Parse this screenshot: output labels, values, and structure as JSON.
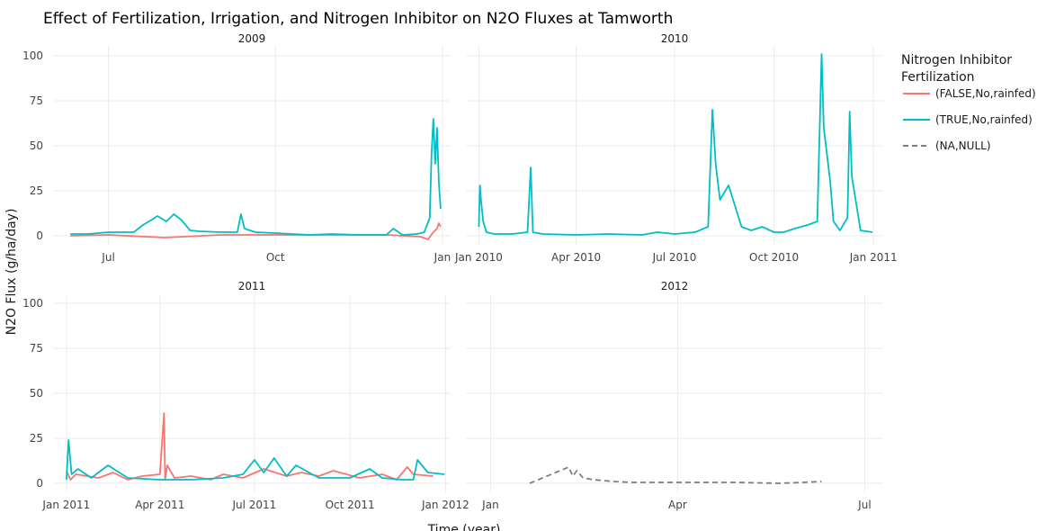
{
  "chart_data": {
    "type": "line",
    "title": "Effect of Fertilization, Irrigation, and Nitrogen Inhibitor on N2O Fluxes at Tamworth",
    "xlabel": "Time (year)",
    "ylabel": "N2O Flux (g/ha/day)",
    "ylim": [
      -5,
      105
    ],
    "yticks": [
      0,
      25,
      50,
      75,
      100
    ],
    "grid": true,
    "legend": {
      "title_lines": [
        "Nitrogen Inhibitor",
        "Fertilization"
      ],
      "placement": "right",
      "entries": [
        {
          "label": "(FALSE,No,rainfed)",
          "color": "#F8766D",
          "dash": "solid"
        },
        {
          "label": "(TRUE,No,rainfed)",
          "color": "#00BFC4",
          "dash": "solid"
        },
        {
          "label": "(NA,NULL)",
          "color": "#7f7f7f",
          "dash": "dash"
        }
      ]
    },
    "panels": [
      {
        "strip": "2009",
        "xrange": [
          "2009-06-01",
          "2010-01-05"
        ],
        "xticks": [
          {
            "value": "2009-07-01",
            "label": "Jul"
          },
          {
            "value": "2009-10-01",
            "label": "Oct"
          },
          {
            "value": "2010-01-01",
            "label": "Jan"
          }
        ],
        "series": [
          {
            "name": "(FALSE,No,rainfed)",
            "color": "#F8766D",
            "dash": "solid",
            "x": [
              "2009-06-10",
              "2009-07-01",
              "2009-08-01",
              "2009-09-01",
              "2009-09-20",
              "2009-10-15",
              "2009-11-10",
              "2009-12-01",
              "2009-12-20",
              "2009-12-24",
              "2009-12-27",
              "2009-12-29",
              "2009-12-30",
              "2009-12-31"
            ],
            "y": [
              0,
              0.5,
              -1,
              0.5,
              0.5,
              0.5,
              0.5,
              0.5,
              -0.5,
              -2,
              2,
              4,
              7,
              5
            ]
          },
          {
            "name": "(TRUE,No,rainfed)",
            "color": "#00BFC4",
            "dash": "solid",
            "x": [
              "2009-06-10",
              "2009-06-20",
              "2009-07-01",
              "2009-07-15",
              "2009-07-20",
              "2009-07-25",
              "2009-07-28",
              "2009-08-02",
              "2009-08-06",
              "2009-08-10",
              "2009-08-15",
              "2009-08-20",
              "2009-09-01",
              "2009-09-10",
              "2009-09-12",
              "2009-09-14",
              "2009-09-20",
              "2009-10-01",
              "2009-10-10",
              "2009-10-20",
              "2009-11-01",
              "2009-11-15",
              "2009-12-01",
              "2009-12-05",
              "2009-12-10",
              "2009-12-18",
              "2009-12-22",
              "2009-12-25",
              "2009-12-26",
              "2009-12-27",
              "2009-12-28",
              "2009-12-29",
              "2009-12-30",
              "2009-12-31"
            ],
            "y": [
              1,
              1,
              2,
              2,
              6,
              9,
              11,
              8,
              12,
              9,
              3,
              2.5,
              2,
              2,
              12,
              4,
              2,
              1.5,
              1,
              0.5,
              1,
              0.5,
              0.5,
              4,
              0.5,
              1,
              2,
              10,
              45,
              65,
              40,
              60,
              30,
              15
            ]
          }
        ]
      },
      {
        "strip": "2010",
        "xrange": [
          "2009-12-20",
          "2011-01-10"
        ],
        "xticks": [
          {
            "value": "2010-01-01",
            "label": "Jan 2010"
          },
          {
            "value": "2010-04-01",
            "label": "Apr 2010"
          },
          {
            "value": "2010-07-01",
            "label": "Jul 2010"
          },
          {
            "value": "2010-10-01",
            "label": "Oct 2010"
          },
          {
            "value": "2011-01-01",
            "label": "Jan 2011"
          }
        ],
        "series": [
          {
            "name": "(TRUE,No,rainfed)",
            "color": "#00BFC4",
            "dash": "solid",
            "x": [
              "2010-01-01",
              "2010-01-02",
              "2010-01-03",
              "2010-01-05",
              "2010-01-08",
              "2010-01-15",
              "2010-02-01",
              "2010-02-15",
              "2010-02-18",
              "2010-02-20",
              "2010-03-01",
              "2010-04-01",
              "2010-05-01",
              "2010-06-01",
              "2010-06-15",
              "2010-07-01",
              "2010-07-20",
              "2010-08-01",
              "2010-08-05",
              "2010-08-08",
              "2010-08-12",
              "2010-08-20",
              "2010-09-01",
              "2010-09-10",
              "2010-09-20",
              "2010-10-01",
              "2010-10-10",
              "2010-10-20",
              "2010-11-01",
              "2010-11-10",
              "2010-11-14",
              "2010-11-16",
              "2010-11-18",
              "2010-11-22",
              "2010-11-25",
              "2010-12-01",
              "2010-12-08",
              "2010-12-10",
              "2010-12-12",
              "2010-12-20",
              "2010-12-31"
            ],
            "y": [
              5,
              28,
              20,
              8,
              2,
              1,
              1,
              2,
              38,
              2,
              1,
              0.5,
              1,
              0.5,
              2,
              1,
              2,
              5,
              70,
              40,
              20,
              28,
              5,
              3,
              5,
              2,
              2,
              4,
              6,
              8,
              101,
              60,
              50,
              30,
              8,
              3,
              10,
              69,
              33,
              3,
              2
            ]
          }
        ]
      },
      {
        "strip": "2011",
        "xrange": [
          "2010-12-20",
          "2012-01-05"
        ],
        "xticks": [
          {
            "value": "2011-01-01",
            "label": "Jan 2011"
          },
          {
            "value": "2011-04-01",
            "label": "Apr 2011"
          },
          {
            "value": "2011-07-01",
            "label": "Jul 2011"
          },
          {
            "value": "2011-10-01",
            "label": "Oct 2011"
          },
          {
            "value": "2012-01-01",
            "label": "Jan 2012"
          }
        ],
        "series": [
          {
            "name": "(FALSE,No,rainfed)",
            "color": "#F8766D",
            "dash": "solid",
            "x": [
              "2011-01-01",
              "2011-01-05",
              "2011-01-10",
              "2011-02-01",
              "2011-02-15",
              "2011-03-01",
              "2011-03-15",
              "2011-04-01",
              "2011-04-05",
              "2011-04-06",
              "2011-04-08",
              "2011-04-15",
              "2011-05-01",
              "2011-05-20",
              "2011-06-01",
              "2011-06-20",
              "2011-07-10",
              "2011-08-01",
              "2011-08-15",
              "2011-09-01",
              "2011-09-15",
              "2011-10-10",
              "2011-11-01",
              "2011-11-15",
              "2011-11-25",
              "2011-12-01",
              "2011-12-20"
            ],
            "y": [
              7,
              2,
              5,
              3,
              6,
              2,
              4,
              5,
              39,
              2,
              10,
              3,
              4,
              2,
              5,
              3,
              8,
              4,
              6,
              4,
              7,
              3,
              5,
              2,
              9,
              5,
              4
            ]
          },
          {
            "name": "(TRUE,No,rainfed)",
            "color": "#00BFC4",
            "dash": "solid",
            "x": [
              "2011-01-01",
              "2011-01-03",
              "2011-01-06",
              "2011-01-12",
              "2011-01-25",
              "2011-02-10",
              "2011-03-01",
              "2011-04-01",
              "2011-05-01",
              "2011-06-01",
              "2011-06-20",
              "2011-07-01",
              "2011-07-10",
              "2011-07-20",
              "2011-08-01",
              "2011-08-10",
              "2011-09-01",
              "2011-10-01",
              "2011-10-20",
              "2011-11-01",
              "2011-11-20",
              "2011-12-01",
              "2011-12-05",
              "2011-12-15",
              "2011-12-31"
            ],
            "y": [
              2,
              24,
              5,
              8,
              3,
              10,
              3,
              2,
              2,
              3,
              5,
              13,
              6,
              14,
              4,
              10,
              3,
              3,
              8,
              3,
              2,
              2,
              13,
              6,
              5
            ]
          }
        ]
      },
      {
        "strip": "2012",
        "xrange": [
          "2011-12-20",
          "2012-07-10"
        ],
        "xticks": [
          {
            "value": "2012-01-01",
            "label": "Jan"
          },
          {
            "value": "2012-04-01",
            "label": "Apr"
          },
          {
            "value": "2012-07-01",
            "label": "Jul"
          }
        ],
        "series": [
          {
            "name": "(NA,NULL)",
            "color": "#7f7f7f",
            "dash": "dash",
            "x": [
              "2012-01-20",
              "2012-02-08",
              "2012-02-10",
              "2012-02-12",
              "2012-02-15",
              "2012-02-20",
              "2012-03-01",
              "2012-03-10",
              "2012-04-30",
              "2012-05-20",
              "2012-06-01",
              "2012-06-10"
            ],
            "y": [
              0,
              9,
              4,
              7,
              3,
              2,
              1,
              0.5,
              0.5,
              0,
              0.5,
              1
            ]
          }
        ]
      }
    ]
  }
}
